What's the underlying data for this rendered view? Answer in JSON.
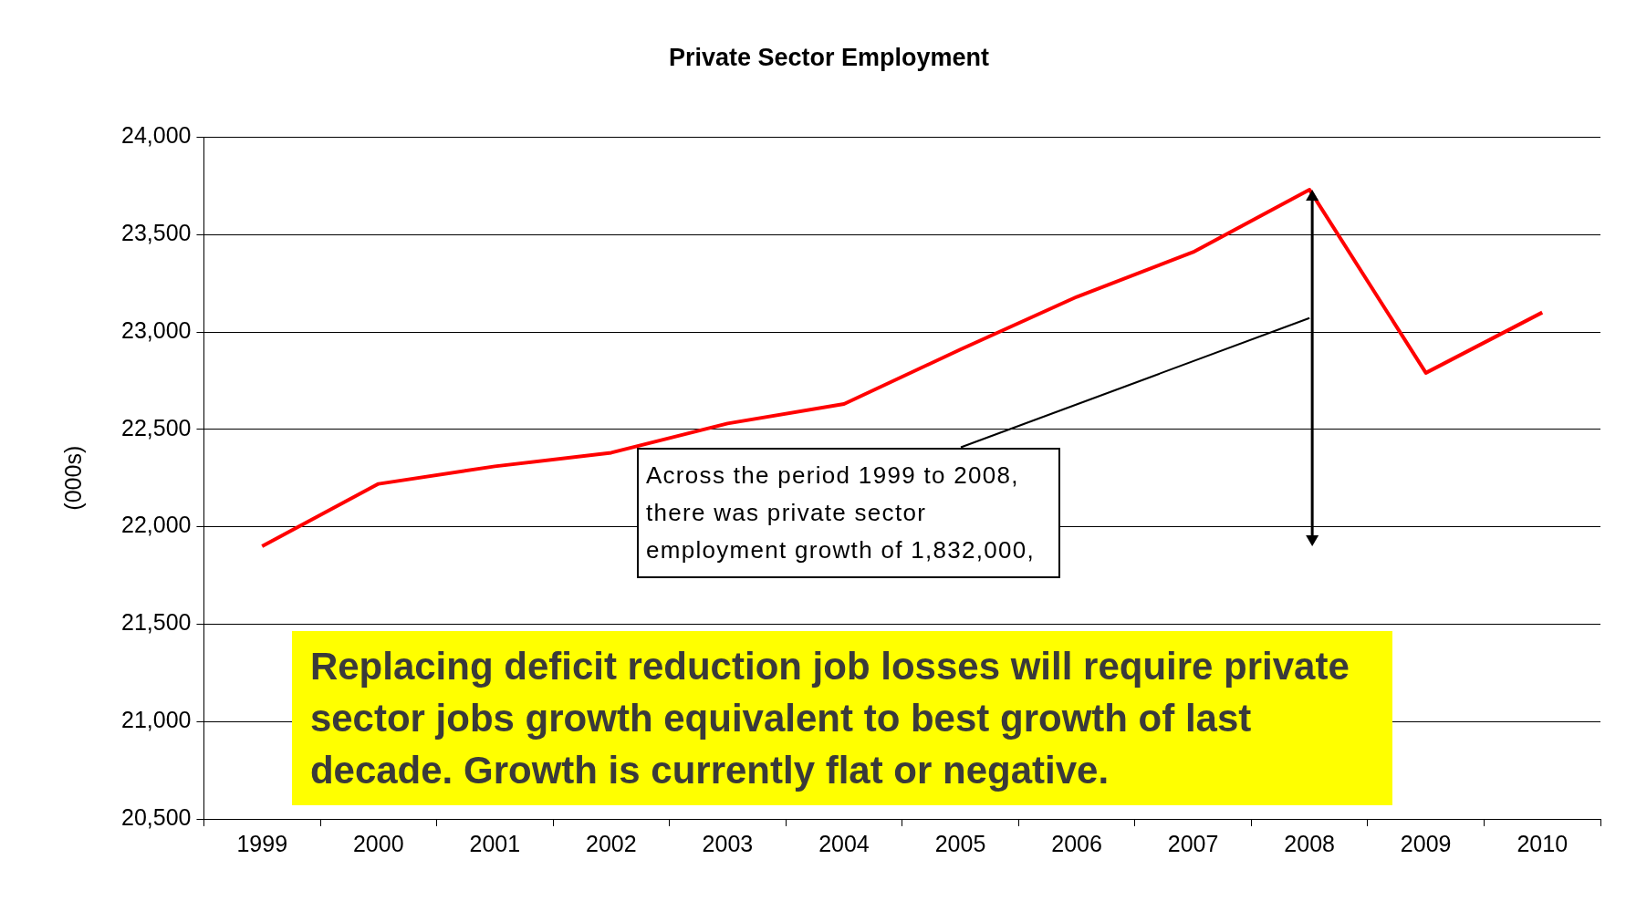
{
  "chart_data": {
    "type": "line",
    "title": "Private Sector Employment",
    "ylabel": "(000s)",
    "categories": [
      "1999",
      "2000",
      "2001",
      "2002",
      "2003",
      "2004",
      "2005",
      "2006",
      "2007",
      "2008",
      "2009",
      "2010"
    ],
    "series": [
      {
        "color": "#ff0000",
        "values": [
          21900,
          22220,
          22310,
          22380,
          22530,
          22630,
          22910,
          23180,
          23410,
          23730,
          22790,
          23100
        ]
      }
    ],
    "ylim": [
      20500,
      24000
    ],
    "yticks": [
      {
        "value": 20500,
        "label": "20,500"
      },
      {
        "value": 21000,
        "label": "21,000"
      },
      {
        "value": 21500,
        "label": "21,500"
      },
      {
        "value": 22000,
        "label": "22,000"
      },
      {
        "value": 22500,
        "label": "22,500"
      },
      {
        "value": 23000,
        "label": "23,000"
      },
      {
        "value": 23500,
        "label": "23,500"
      },
      {
        "value": 24000,
        "label": "24,000"
      }
    ],
    "grid": "y",
    "legend": false,
    "marker": "none",
    "line_style": "solid",
    "annotations": [
      "Across the period 1999 to 2008, there was private sector employment growth of 1,832,000,",
      "Replacing deficit reduction job losses will require private sector jobs growth equivalent to best growth of last decade.  Growth is currently flat or negative."
    ]
  }
}
